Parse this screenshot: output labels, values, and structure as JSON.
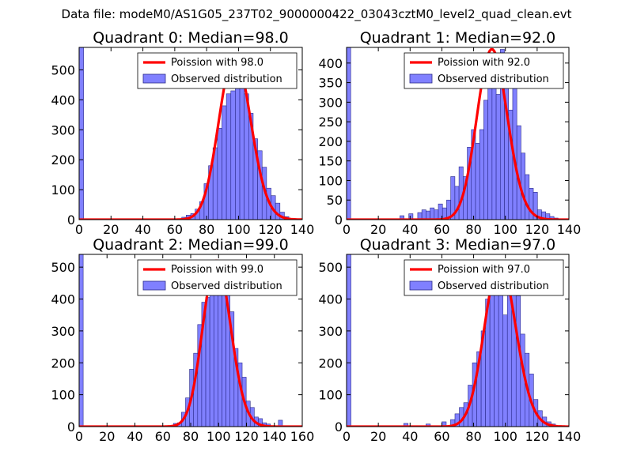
{
  "figure": {
    "suptitle": "Data file: modeM0/AS1G05_237T02_9000000422_03043cztM0_level2_quad_clean.evt"
  },
  "colors": {
    "bar_fill": "#8080ff",
    "bar_edge": "#2a2a8a",
    "poisson_line": "#ff0000",
    "legend_border": "#000000"
  },
  "chart_data": [
    {
      "type": "bar",
      "title": "Quadrant 0: Median=98.0",
      "median": 98.0,
      "xlim": [
        0,
        140
      ],
      "ylim": [
        0,
        575
      ],
      "xticks": [
        0,
        20,
        40,
        60,
        80,
        100,
        120,
        140
      ],
      "yticks": [
        0,
        100,
        200,
        300,
        400,
        500
      ],
      "bin_width": 2.8,
      "bins": [
        [
          0,
          575
        ],
        [
          64.4,
          8
        ],
        [
          67.2,
          15
        ],
        [
          70,
          20
        ],
        [
          72.8,
          35
        ],
        [
          75.6,
          60
        ],
        [
          78.4,
          120
        ],
        [
          81.2,
          180
        ],
        [
          84,
          240
        ],
        [
          86.8,
          305
        ],
        [
          89.6,
          380
        ],
        [
          92.4,
          420
        ],
        [
          95.2,
          430
        ],
        [
          98,
          440
        ],
        [
          100.8,
          550
        ],
        [
          103.6,
          420
        ],
        [
          106.4,
          355
        ],
        [
          109.2,
          270
        ],
        [
          112,
          230
        ],
        [
          114.8,
          175
        ],
        [
          117.6,
          105
        ],
        [
          120.4,
          80
        ],
        [
          123.2,
          55
        ],
        [
          126,
          25
        ],
        [
          128.8,
          10
        ]
      ],
      "legend": {
        "line_label": "Poission with 98.0",
        "bar_label": "Observed distribution",
        "position": "upper right"
      }
    },
    {
      "type": "bar",
      "title": "Quadrant 1: Median=92.0",
      "median": 92.0,
      "xlim": [
        0,
        140
      ],
      "ylim": [
        0,
        440
      ],
      "xticks": [
        0,
        20,
        40,
        60,
        80,
        100,
        120,
        140
      ],
      "yticks": [
        0,
        50,
        100,
        150,
        200,
        250,
        300,
        350,
        400
      ],
      "bin_width": 2.6,
      "bins": [
        [
          0,
          440
        ],
        [
          33.6,
          10
        ],
        [
          39.2,
          15
        ],
        [
          44.8,
          18
        ],
        [
          47.4,
          25
        ],
        [
          50,
          22
        ],
        [
          52.6,
          30
        ],
        [
          55.2,
          25
        ],
        [
          57.8,
          40
        ],
        [
          60.4,
          30
        ],
        [
          63,
          50
        ],
        [
          65.6,
          110
        ],
        [
          68.2,
          85
        ],
        [
          70.8,
          135
        ],
        [
          73.4,
          110
        ],
        [
          76,
          185
        ],
        [
          78.6,
          230
        ],
        [
          81.2,
          195
        ],
        [
          83.8,
          230
        ],
        [
          86.4,
          305
        ],
        [
          89,
          365
        ],
        [
          91.6,
          390
        ],
        [
          94.2,
          320
        ],
        [
          96.8,
          435
        ],
        [
          99.4,
          340
        ],
        [
          102,
          280
        ],
        [
          104.6,
          360
        ],
        [
          107.2,
          240
        ],
        [
          109.8,
          170
        ],
        [
          112.4,
          115
        ],
        [
          115,
          80
        ],
        [
          117.6,
          70
        ],
        [
          120.2,
          25
        ],
        [
          122.8,
          20
        ],
        [
          125.4,
          15
        ],
        [
          128,
          8
        ],
        [
          130.6,
          4
        ]
      ],
      "legend": {
        "line_label": "Poission with 92.0",
        "bar_label": "Observed distribution",
        "position": "upper right"
      }
    },
    {
      "type": "bar",
      "title": "Quadrant 2: Median=99.0",
      "median": 99.0,
      "xlim": [
        0,
        160
      ],
      "ylim": [
        0,
        540
      ],
      "xticks": [
        0,
        20,
        40,
        60,
        80,
        100,
        120,
        140,
        160
      ],
      "yticks": [
        0,
        100,
        200,
        300,
        400,
        500
      ],
      "bin_width": 2.9,
      "bins": [
        [
          0,
          540
        ],
        [
          67.6,
          10
        ],
        [
          70.5,
          12
        ],
        [
          73.4,
          45
        ],
        [
          76.3,
          90
        ],
        [
          79.2,
          180
        ],
        [
          82.1,
          230
        ],
        [
          85,
          320
        ],
        [
          87.9,
          390
        ],
        [
          90.8,
          405
        ],
        [
          93.7,
          470
        ],
        [
          96.6,
          515
        ],
        [
          99.5,
          490
        ],
        [
          102.4,
          520
        ],
        [
          105.3,
          465
        ],
        [
          108.2,
          360
        ],
        [
          111.1,
          245
        ],
        [
          114,
          200
        ],
        [
          116.9,
          155
        ],
        [
          119.8,
          80
        ],
        [
          122.7,
          60
        ],
        [
          125.6,
          30
        ],
        [
          128.5,
          25
        ],
        [
          131.4,
          12
        ],
        [
          134.3,
          8
        ],
        [
          142.9,
          20
        ]
      ],
      "legend": {
        "line_label": "Poission with 99.0",
        "bar_label": "Observed distribution",
        "position": "upper right"
      }
    },
    {
      "type": "bar",
      "title": "Quadrant 3: Median=97.0",
      "median": 97.0,
      "xlim": [
        0,
        140
      ],
      "ylim": [
        0,
        540
      ],
      "xticks": [
        0,
        20,
        40,
        60,
        80,
        100,
        120,
        140
      ],
      "yticks": [
        0,
        100,
        200,
        300,
        400,
        500
      ],
      "bin_width": 2.75,
      "bins": [
        [
          0,
          540
        ],
        [
          36,
          10
        ],
        [
          50,
          8
        ],
        [
          60,
          15
        ],
        [
          65.5,
          22
        ],
        [
          68.25,
          40
        ],
        [
          71,
          60
        ],
        [
          73.75,
          75
        ],
        [
          76.5,
          130
        ],
        [
          79.25,
          200
        ],
        [
          82,
          235
        ],
        [
          84.75,
          300
        ],
        [
          87.5,
          400
        ],
        [
          90.25,
          470
        ],
        [
          93,
          490
        ],
        [
          95.75,
          515
        ],
        [
          98.5,
          350
        ],
        [
          101.25,
          505
        ],
        [
          104,
          480
        ],
        [
          106.75,
          410
        ],
        [
          109.5,
          290
        ],
        [
          112.25,
          230
        ],
        [
          115,
          165
        ],
        [
          117.75,
          85
        ],
        [
          120.5,
          50
        ],
        [
          123.25,
          30
        ],
        [
          126,
          15
        ],
        [
          128.75,
          8
        ]
      ],
      "legend": {
        "line_label": "Poission with 97.0",
        "bar_label": "Observed distribution",
        "position": "upper right"
      }
    }
  ]
}
